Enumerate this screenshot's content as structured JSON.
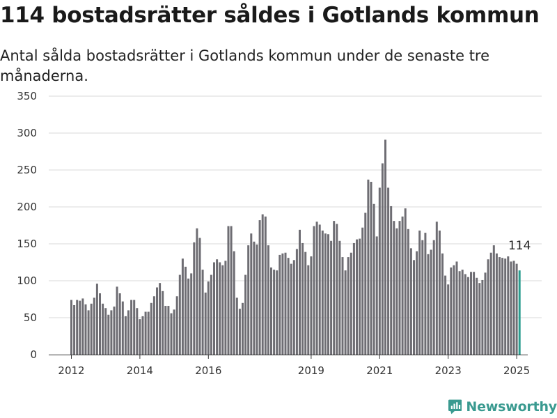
{
  "title": "114 bostadsrätter såldes i Gotlands kommun",
  "subtitle": "Antal sålda bostadsrätter i Gotlands kommun under de senaste tre månaderna.",
  "brand": {
    "name": "Newsworthy",
    "color": "#3a9a90"
  },
  "chart_data": {
    "type": "bar",
    "x_start": "2012-01",
    "x_end": "2025-01",
    "frequency": "monthly",
    "x_ticks": [
      "2012",
      "2014",
      "2016",
      "2019",
      "2021",
      "2023",
      "2025"
    ],
    "y_ticks": [
      0,
      50,
      100,
      150,
      200,
      250,
      300,
      350
    ],
    "ylim": [
      0,
      350
    ],
    "grid": true,
    "bar_color": "#6e6d73",
    "highlight_color": "#2a9d8f",
    "highlight_label": "114",
    "values": [
      74,
      67,
      74,
      73,
      76,
      68,
      60,
      69,
      77,
      96,
      83,
      69,
      63,
      54,
      60,
      65,
      92,
      83,
      72,
      52,
      60,
      74,
      74,
      63,
      48,
      52,
      58,
      58,
      70,
      79,
      91,
      97,
      86,
      66,
      66,
      56,
      61,
      79,
      108,
      130,
      119,
      103,
      110,
      152,
      171,
      158,
      115,
      84,
      99,
      108,
      125,
      129,
      125,
      121,
      127,
      174,
      174,
      140,
      77,
      62,
      70,
      108,
      148,
      164,
      153,
      149,
      182,
      190,
      187,
      148,
      118,
      115,
      114,
      135,
      137,
      138,
      131,
      123,
      128,
      143,
      169,
      151,
      139,
      121,
      133,
      174,
      180,
      176,
      168,
      164,
      163,
      154,
      181,
      177,
      154,
      132,
      114,
      132,
      138,
      151,
      156,
      157,
      172,
      192,
      237,
      234,
      204,
      160,
      226,
      259,
      291,
      226,
      201,
      181,
      171,
      181,
      187,
      198,
      170,
      144,
      128,
      140,
      168,
      155,
      165,
      136,
      142,
      155,
      180,
      168,
      137,
      107,
      95,
      118,
      121,
      126,
      113,
      115,
      109,
      105,
      112,
      112,
      104,
      97,
      101,
      111,
      129,
      138,
      148,
      137,
      132,
      131,
      130,
      133,
      126,
      127,
      123,
      114
    ]
  }
}
